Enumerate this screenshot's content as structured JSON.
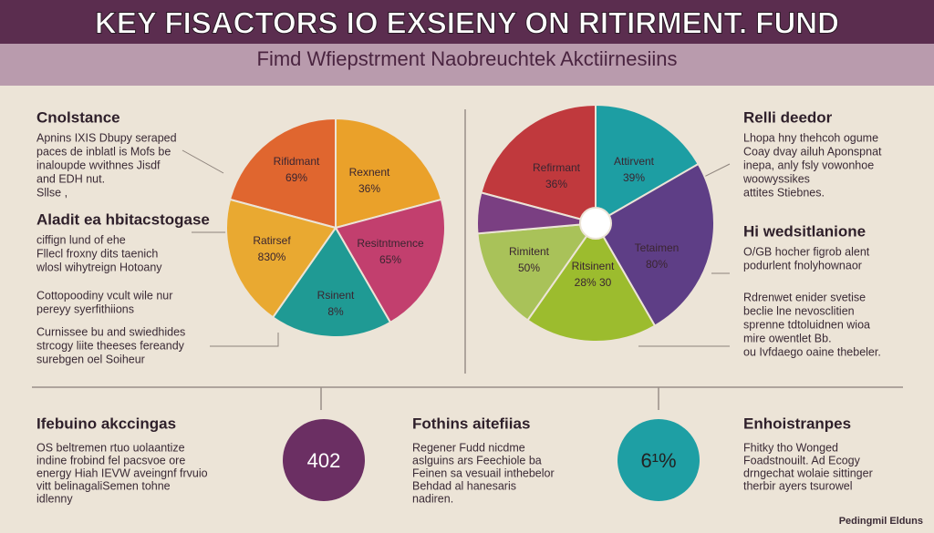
{
  "header": {
    "title": "KEY FISACTORS IO EXSIENY ON RITIRMENT. FUND",
    "subtitle": "Fimd Wfiepstrment Naobreuchtek Akctiirnesiins"
  },
  "left_panel": {
    "sections": [
      {
        "heading": "Cnolstance",
        "lines": [
          "Apnins IXIS Dbupy seraped",
          "paces de inblatl is Mofs be",
          "inaloupde wvithnes Jisdf",
          "and EDH nut.",
          "Sllse ,"
        ]
      },
      {
        "heading": "Aladit ea hbitacstogase",
        "lines": [
          "ciffign lund of ehe",
          "Fllecl froxny dits taenich",
          "wlosl wihytreign Hotoany"
        ]
      },
      {
        "heading": "",
        "lines": [
          "Cottopoodiny vcult wile nur",
          "pereyy syerfithiions"
        ]
      },
      {
        "heading": "",
        "lines": [
          "Curnissee bu and swiedhides",
          "strcogy liite theeses fereandy",
          "surebgen oel Soiheur"
        ]
      }
    ]
  },
  "left_pie": {
    "slices": [
      {
        "name": "Rifidmant",
        "label": "69%"
      },
      {
        "name": "Rexnent",
        "label": "36%"
      },
      {
        "name": "Resitntmence",
        "label": "65%"
      },
      {
        "name": "Rsinent",
        "label": "8%"
      },
      {
        "name": "Ratirsef",
        "label": "830%"
      }
    ]
  },
  "right_pie": {
    "slices": [
      {
        "name": "Refirmant",
        "label": "36%"
      },
      {
        "name": "Attirvent",
        "label": "39%"
      },
      {
        "name": "Tetaimen",
        "label": "80%"
      },
      {
        "name": "Ritsinent",
        "label": "28% 30"
      },
      {
        "name": "Rimitent",
        "label": "50%"
      }
    ]
  },
  "right_panel": {
    "sections": [
      {
        "heading": "Relli deedor",
        "lines": [
          "Lhopa hny thehcoh ogume",
          "Coay dvay ailuh Aponspnat",
          "inepa, anly fsly vowonhoe",
          "woowyssikes",
          "attites Stiebnes."
        ]
      },
      {
        "heading": "Hi wedsitlanione",
        "lines": [
          "O/GB hocher figrob alent",
          "podurlent fnolyhownaor"
        ]
      },
      {
        "heading": "",
        "lines": [
          "Rdrenwet enider svetise",
          "beclie lne nevosclitien",
          "sprenne tdtoluidnen wioa",
          "mire owentlet Bb.",
          "ou Ivfdaego oaine thebeler."
        ]
      }
    ]
  },
  "bottom": {
    "columns": [
      {
        "heading": "Ifebuino akccingas",
        "lines": [
          "OS beltremen rtuo uolaantize",
          "indine frobind fel pacsvoe ore",
          "energy Hiah IEVW aveingnf frvuio",
          "vitt belinagaliSemen tohne",
          "idlenny"
        ],
        "badge": "402"
      },
      {
        "heading": "Fothins aitefiias",
        "lines": [
          "Regener Fudd nicdme",
          "aslguins ars Feechiole ba",
          "Feinen sa vesuail inthebelor",
          "Behdad al hanesaris",
          "nadiren."
        ]
      },
      {
        "heading": "Enhoistranpes",
        "lines": [
          "Fhitky tho Wonged",
          "Foadstnouilt. Ad Ecogy",
          "drngechat wolaie sittinger",
          "therbir ayers tsurowel"
        ],
        "badge": "6¹%"
      }
    ]
  },
  "footer": "Pedingmil Elduns"
}
